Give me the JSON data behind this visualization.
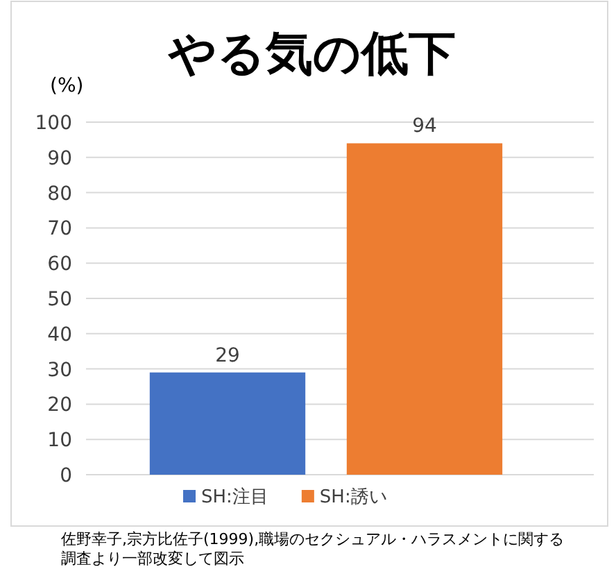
{
  "chart_data": {
    "type": "bar",
    "title": "やる気の低下",
    "ylabel": "(%)",
    "categories": [
      null,
      null
    ],
    "series": [
      {
        "name": "SH:注目",
        "color": "#4472c4",
        "values": [
          29,
          null
        ]
      },
      {
        "name": "SH:誘い",
        "color": "#ed7d31",
        "values": [
          null,
          94
        ]
      }
    ],
    "ylim": [
      0,
      100
    ],
    "yticks": [
      0,
      10,
      20,
      30,
      40,
      50,
      60,
      70,
      80,
      90,
      100
    ],
    "grid": "y",
    "legend": "bottom",
    "data_labels": true,
    "annotations": [
      "佐野幸子,宗方比佐子(1999),職場のセクシュアル・ハラスメントに関する調査より一部改変して図示"
    ]
  }
}
